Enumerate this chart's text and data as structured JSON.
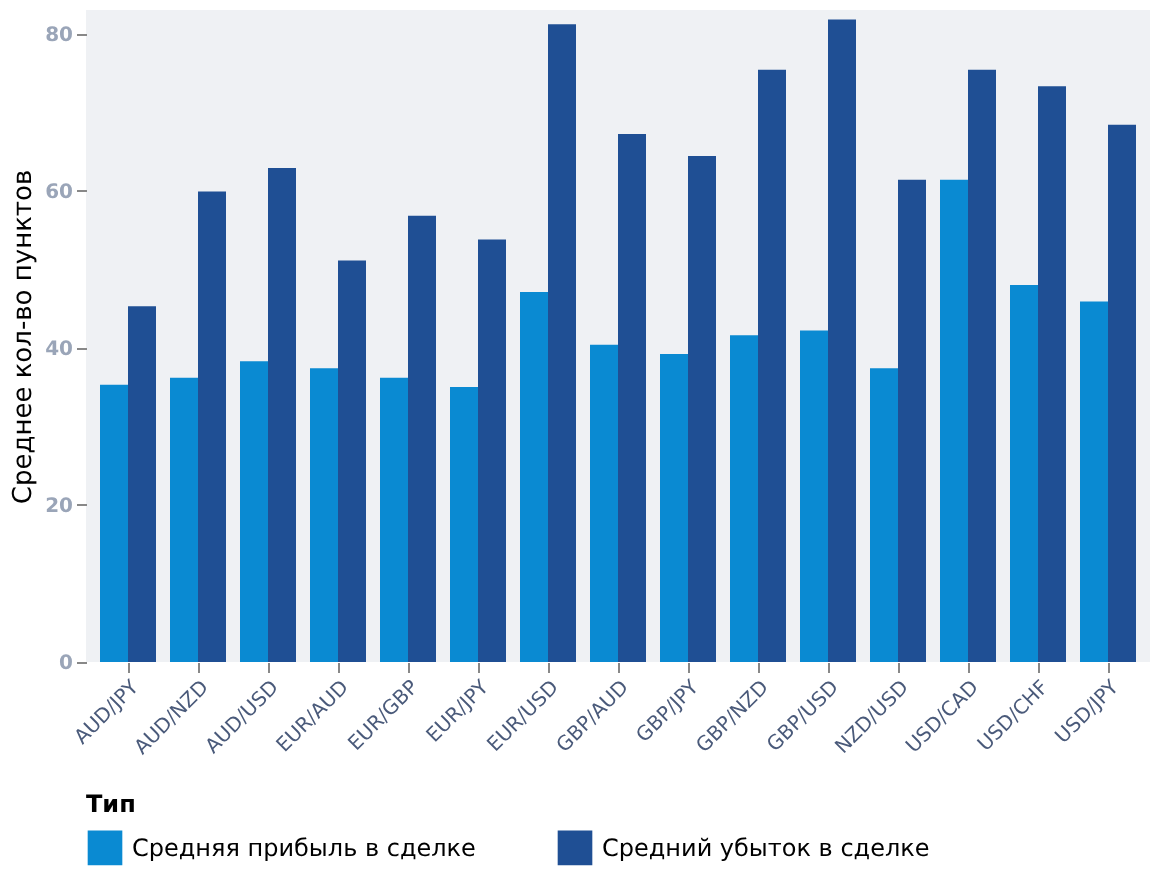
{
  "chart_data": {
    "type": "bar",
    "ylabel": "Среднее кол-во пунктов",
    "legend_title": "Тип",
    "legend": "bottom left",
    "grid": false,
    "categories": [
      "AUD/JPY",
      "AUD/NZD",
      "AUD/USD",
      "EUR/AUD",
      "EUR/GBP",
      "EUR/JPY",
      "EUR/USD",
      "GBP/AUD",
      "GBP/JPY",
      "GBP/NZD",
      "GBP/USD",
      "NZD/USD",
      "USD/CAD",
      "USD/CHF",
      "USD/JPY"
    ],
    "ylim": [
      0,
      83
    ],
    "yticks": [
      0,
      20,
      40,
      60,
      80
    ],
    "series": [
      {
        "name": "Средняя прибыль в сделке",
        "color": "#0a8ad2",
        "values": [
          35.3,
          36.2,
          38.3,
          37.4,
          36.2,
          35.0,
          47.1,
          40.4,
          39.2,
          41.6,
          42.2,
          37.4,
          61.4,
          48.0,
          45.9
        ]
      },
      {
        "name": "Средний убыток в сделке",
        "color": "#1f4f94",
        "values": [
          45.3,
          59.9,
          62.9,
          51.1,
          56.8,
          53.8,
          81.2,
          67.2,
          64.4,
          75.4,
          81.8,
          61.4,
          75.4,
          73.3,
          68.4
        ]
      }
    ]
  }
}
